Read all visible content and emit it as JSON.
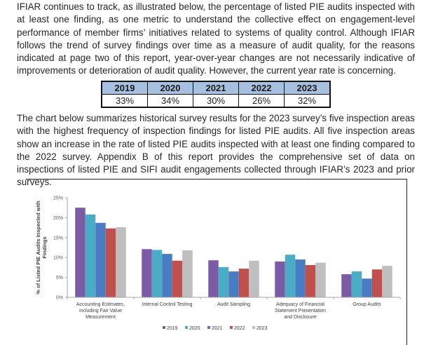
{
  "paragraphs": {
    "intro": "IFIAR continues to track, as illustrated below, the percentage of listed PIE audits inspected with at least one finding, as one metric to understand the collective effect on engagement-level performance of member firms’ initiatives related to systems of quality control. Although IFIAR follows the trend of survey findings over time as a measure of audit quality, for the reasons indicated at page two of this report, year-over-year changes are not necessarily indicative of improvements or deterioration of audit quality. However, the current year rate is concerning.",
    "chart_intro": "The chart below summarizes historical survey results for the 2023 survey’s five inspection areas with the highest frequency of inspection findings for listed PIE audits. All five inspection areas show an increase in the rate of listed PIE audits inspected with at least one finding compared to the 2022 survey. Appendix B of this report provides the comprehensive set of data on inspections of listed PIE and SIFI audit engagements collected through IFIAR’s 2023 and prior surveys."
  },
  "rates_table": {
    "years": [
      "2019",
      "2020",
      "2021",
      "2022",
      "2023"
    ],
    "values": [
      "33%",
      "34%",
      "30%",
      "26%",
      "32%"
    ]
  },
  "chart_data": {
    "type": "bar",
    "title": "",
    "xlabel": "",
    "ylabel": "% of Listed PIE Audits Inspected with Findings",
    "ylabel_lines": [
      "% of Listed PIE Audits Inspected with",
      "Findings"
    ],
    "ylim": [
      0,
      25
    ],
    "yticks": [
      0,
      5,
      10,
      15,
      20,
      25
    ],
    "ytick_labels": [
      "0%",
      "5%",
      "10%",
      "15%",
      "20%",
      "25%"
    ],
    "grid": false,
    "legend_position": "bottom",
    "categories": [
      [
        "Accounting Estimates,",
        "including Fair Value",
        "Measurement"
      ],
      [
        "Internal Control Testing"
      ],
      [
        "Audit Sampling"
      ],
      [
        "Adequacy of Financial",
        "Statement Presentation",
        "and Disclosure"
      ],
      [
        "Group Audits"
      ]
    ],
    "series": [
      {
        "name": "2019",
        "color": "#7b5ba6",
        "values": [
          22.5,
          12.1,
          9.3,
          9.0,
          5.8
        ]
      },
      {
        "name": "2020",
        "color": "#4bacc6",
        "values": [
          20.8,
          11.9,
          7.6,
          10.7,
          6.5
        ]
      },
      {
        "name": "2021",
        "color": "#4a7cc4",
        "values": [
          18.7,
          10.9,
          6.5,
          9.5,
          4.7
        ]
      },
      {
        "name": "2022",
        "color": "#c0504d",
        "values": [
          17.3,
          9.2,
          7.2,
          8.1,
          7.0
        ]
      },
      {
        "name": "2023",
        "color": "#bfbfbf",
        "values": [
          17.6,
          11.8,
          9.2,
          8.7,
          7.9
        ]
      }
    ]
  }
}
